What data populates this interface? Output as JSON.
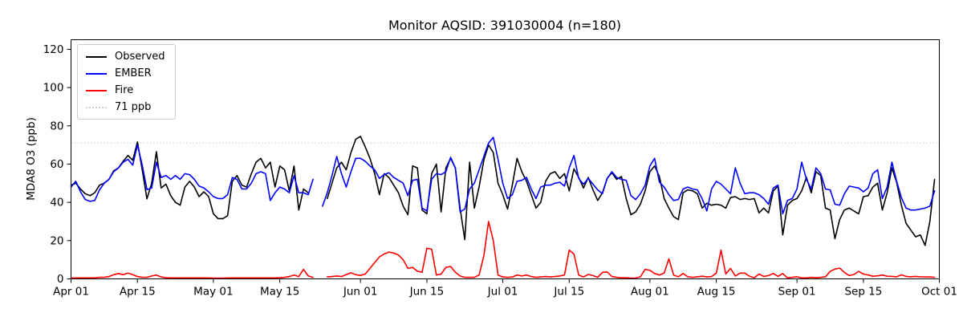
{
  "chart_data": {
    "type": "line",
    "title": "Monitor AQSID: 391030004 (n=180)",
    "xlabel": "",
    "ylabel": "MDA8 O3 (ppb)",
    "x_unit": "days since Apr 01",
    "xlim": [
      0,
      183
    ],
    "ylim": [
      0,
      125
    ],
    "grid": false,
    "y_ticks": [
      0,
      20,
      40,
      60,
      80,
      100,
      120
    ],
    "x_ticks": [
      {
        "day": 0,
        "label": "Apr 01"
      },
      {
        "day": 14,
        "label": "Apr 15"
      },
      {
        "day": 30,
        "label": "May 01"
      },
      {
        "day": 44,
        "label": "May 15"
      },
      {
        "day": 61,
        "label": "Jun 01"
      },
      {
        "day": 75,
        "label": "Jun 15"
      },
      {
        "day": 91,
        "label": "Jul 01"
      },
      {
        "day": 105,
        "label": "Jul 15"
      },
      {
        "day": 122,
        "label": "Aug 01"
      },
      {
        "day": 136,
        "label": "Aug 15"
      },
      {
        "day": 153,
        "label": "Sep 01"
      },
      {
        "day": 167,
        "label": "Sep 15"
      },
      {
        "day": 183,
        "label": "Oct 01"
      }
    ],
    "threshold": {
      "value": 71,
      "label": "71 ppb",
      "color": "#d3d3d3"
    },
    "legend": {
      "position": "upper left"
    },
    "series": [
      {
        "name": "Observed",
        "color": "#000000",
        "values": [
          49,
          50,
          47,
          44.5,
          43.5,
          45,
          49,
          50,
          52,
          56.5,
          58,
          61.5,
          64.5,
          62,
          71.5,
          57,
          41.8,
          50,
          66.5,
          47.5,
          49.5,
          43.5,
          40,
          38.5,
          48,
          51,
          48,
          43,
          45.5,
          43,
          34,
          31.5,
          31.5,
          33,
          51,
          54,
          49,
          48,
          55,
          61,
          63,
          58,
          61,
          48,
          59,
          57,
          46,
          59,
          36,
          47,
          45,
          null,
          null,
          null,
          42,
          50,
          58,
          61,
          57,
          66,
          73,
          74.5,
          69,
          63,
          55,
          44,
          55,
          53,
          49,
          45,
          38,
          33.5,
          59,
          58,
          36,
          34,
          55,
          60,
          35,
          58,
          63,
          58,
          37,
          20.5,
          61,
          37,
          48,
          62,
          70,
          66,
          50,
          44,
          36.5,
          49,
          63,
          56,
          51,
          44,
          37,
          40,
          51,
          55,
          56,
          52.5,
          55,
          46,
          57.5,
          53,
          47.5,
          53,
          46.5,
          41,
          45,
          52.5,
          55.5,
          52,
          53.5,
          42,
          33.5,
          35,
          39,
          46,
          56,
          59,
          53.5,
          42,
          37,
          32.5,
          31,
          45,
          46.5,
          46,
          44.5,
          37,
          39.5,
          38.5,
          39,
          38.5,
          37,
          42.5,
          43,
          41.5,
          42,
          41.5,
          42,
          34.5,
          37,
          34.5,
          46,
          48.5,
          23,
          38.5,
          41,
          42,
          46,
          53,
          45,
          56,
          54,
          37,
          36,
          21,
          31,
          36,
          37,
          35.5,
          34,
          43,
          43.5,
          48,
          50,
          36,
          45,
          58,
          50.5,
          38.5,
          29,
          25.5,
          22,
          23,
          17.5,
          30,
          52
        ]
      },
      {
        "name": "EMBER",
        "color": "#0000ff",
        "values": [
          48,
          51,
          45.5,
          41.5,
          40.5,
          41,
          46.5,
          50,
          52,
          56,
          58,
          61,
          62.5,
          59.5,
          70,
          59.5,
          46.7,
          47.5,
          61,
          53,
          54,
          52,
          54,
          52,
          55,
          54.5,
          52,
          48.5,
          47.5,
          45.5,
          43,
          42,
          42,
          44,
          53,
          52,
          47,
          47,
          50,
          55,
          56,
          55,
          41,
          45,
          48,
          47,
          45,
          54,
          45,
          45,
          44,
          52,
          null,
          38,
          45,
          54,
          64,
          55,
          48,
          56,
          63,
          63,
          61.5,
          59,
          57,
          52.5,
          54.5,
          55.5,
          53,
          51.5,
          50,
          43.5,
          51.5,
          52,
          37,
          35.5,
          52,
          55,
          54.5,
          56,
          63.5,
          58,
          35,
          36.5,
          47,
          50,
          57,
          64,
          71,
          74,
          62.5,
          50,
          42,
          44,
          51,
          51.5,
          53,
          47,
          42,
          48,
          49,
          49,
          50,
          50.5,
          48.5,
          58,
          64.5,
          52.5,
          49.5,
          52.5,
          49.5,
          46.5,
          44.5,
          52.5,
          56,
          53,
          52,
          51.5,
          43.5,
          41.5,
          44.5,
          49,
          59,
          63,
          50.5,
          48,
          44,
          41,
          41.5,
          47,
          48,
          47,
          46.5,
          42,
          35.5,
          47,
          51,
          49.5,
          47,
          44.5,
          58,
          50,
          44.5,
          45,
          45,
          44,
          42,
          39,
          47.5,
          49,
          34,
          41,
          42,
          47,
          61,
          52,
          47,
          58,
          55,
          47,
          46.5,
          39,
          38.5,
          44.5,
          48.5,
          48,
          47.5,
          45.5,
          47.5,
          55,
          57,
          42,
          48,
          61,
          51,
          42.5,
          37,
          36,
          36,
          36.5,
          37,
          38,
          46
        ]
      },
      {
        "name": "Fire",
        "color": "#ff0000",
        "values": [
          0.5,
          0.5,
          0.5,
          0.5,
          0.5,
          0.5,
          0.8,
          0.8,
          1.2,
          2.2,
          2.8,
          2.2,
          3,
          2.2,
          1.2,
          0.8,
          0.8,
          1.5,
          2,
          1,
          0.6,
          0.5,
          0.5,
          0.5,
          0.5,
          0.5,
          0.5,
          0.5,
          0.5,
          0.5,
          0.4,
          0.4,
          0.4,
          0.5,
          0.5,
          0.5,
          0.5,
          0.5,
          0.5,
          0.5,
          0.5,
          0.5,
          0.5,
          0.5,
          0.6,
          0.8,
          1.2,
          2,
          1.2,
          5,
          1.5,
          0.8,
          null,
          null,
          1,
          1.2,
          1.5,
          1.2,
          2.2,
          3.2,
          2.2,
          1.8,
          2.5,
          5.5,
          8.5,
          11.5,
          13,
          14,
          13.5,
          12.5,
          10,
          5.5,
          6,
          4,
          3.5,
          16,
          15.5,
          2,
          2.5,
          6,
          6.5,
          3.5,
          1.5,
          0.8,
          0.8,
          0.8,
          2,
          12,
          30,
          20,
          2,
          1,
          0.8,
          1,
          2,
          1.5,
          2,
          1.2,
          0.8,
          1,
          1.2,
          1,
          1.2,
          1.5,
          2,
          15,
          13,
          2,
          1,
          2.3,
          1.7,
          0.8,
          3.4,
          3.6,
          1.2,
          0.8,
          0.6,
          0.6,
          0.4,
          0.4,
          1.1,
          5,
          4.5,
          2.8,
          2,
          3,
          10.5,
          2,
          1.1,
          2.8,
          1.1,
          0.8,
          1.1,
          1.4,
          1,
          1.2,
          3,
          15,
          2.5,
          5.5,
          1.5,
          3,
          3,
          1.4,
          0.6,
          2.5,
          1.3,
          1.7,
          2.8,
          1.3,
          2.8,
          0.5,
          0.8,
          1.1,
          0.5,
          0.5,
          0.8,
          0.6,
          0.8,
          1.1,
          3.9,
          5.1,
          5.6,
          3.4,
          1.7,
          2.3,
          3.9,
          2.5,
          2,
          1.4,
          1.6,
          2,
          1.4,
          1.3,
          1.1,
          2.1,
          1.3,
          1.1,
          1.3,
          1.1,
          1,
          1,
          0.8
        ]
      }
    ]
  }
}
